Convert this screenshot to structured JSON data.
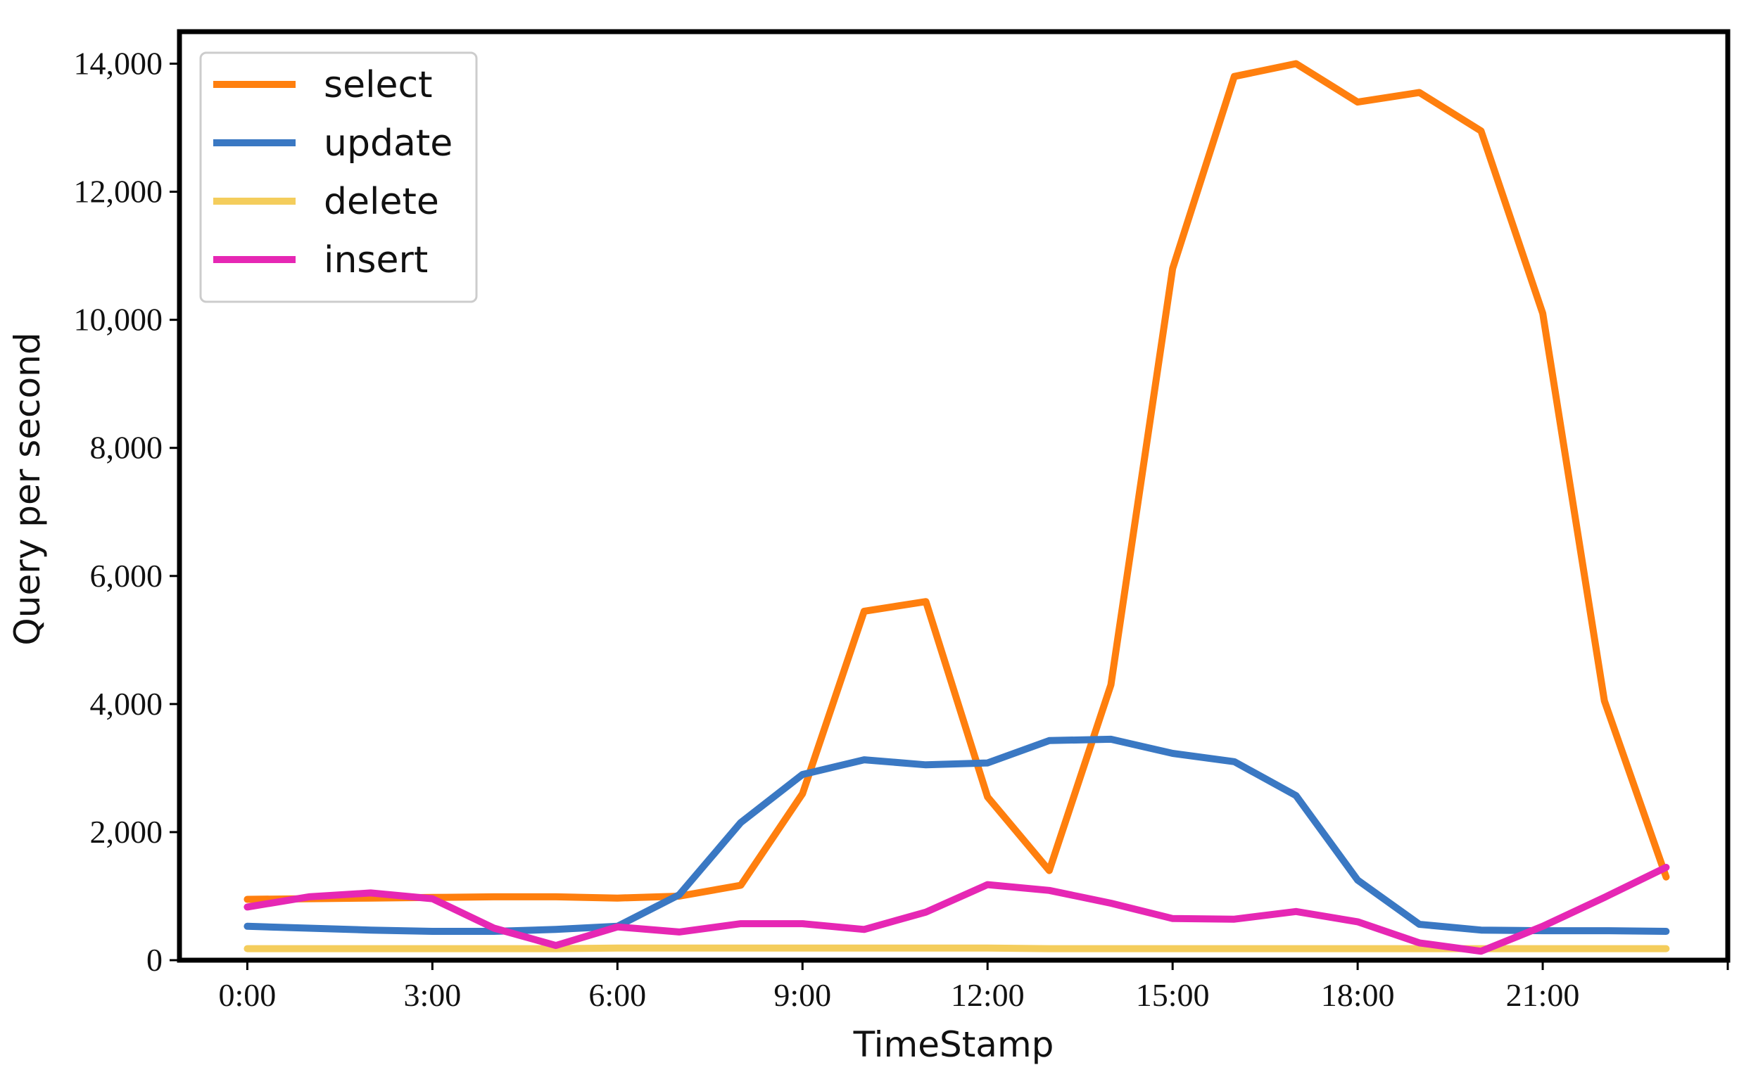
{
  "chart_data": {
    "type": "line",
    "xlabel": "TimeStamp",
    "ylabel": "Query per second",
    "x": [
      0,
      1,
      2,
      3,
      4,
      5,
      6,
      7,
      8,
      9,
      10,
      11,
      12,
      13,
      14,
      15,
      16,
      17,
      18,
      19,
      20,
      21,
      22,
      23
    ],
    "xticks": [
      {
        "value": 0,
        "label": "0:00"
      },
      {
        "value": 3,
        "label": "3:00"
      },
      {
        "value": 6,
        "label": "6:00"
      },
      {
        "value": 9,
        "label": "9:00"
      },
      {
        "value": 12,
        "label": "12:00"
      },
      {
        "value": 15,
        "label": "15:00"
      },
      {
        "value": 18,
        "label": "18:00"
      },
      {
        "value": 21,
        "label": "21:00"
      }
    ],
    "yticks": [
      {
        "value": 0,
        "label": "0"
      },
      {
        "value": 2000,
        "label": "2,000"
      },
      {
        "value": 4000,
        "label": "4,000"
      },
      {
        "value": 6000,
        "label": "6,000"
      },
      {
        "value": 8000,
        "label": "8,000"
      },
      {
        "value": 10000,
        "label": "10,000"
      },
      {
        "value": 12000,
        "label": "12,000"
      },
      {
        "value": 14000,
        "label": "14,000"
      }
    ],
    "xlim": [
      -1.1,
      24.0
    ],
    "ylim": [
      0,
      14500
    ],
    "grid": false,
    "legend": "top-left",
    "series": [
      {
        "name": "select",
        "color": "#ff7f0e",
        "values": [
          950,
          960,
          970,
          980,
          990,
          990,
          970,
          1000,
          1170,
          2600,
          5450,
          5600,
          2550,
          1400,
          4300,
          10800,
          13800,
          14000,
          13400,
          13550,
          12950,
          10100,
          4050,
          1300
        ]
      },
      {
        "name": "update",
        "color": "#3a78c3",
        "values": [
          530,
          500,
          470,
          450,
          450,
          480,
          530,
          1020,
          2150,
          2900,
          3130,
          3050,
          3080,
          3430,
          3450,
          3230,
          3100,
          2570,
          1250,
          560,
          470,
          460,
          460,
          450
        ]
      },
      {
        "name": "delete",
        "color": "#f4cd5c",
        "values": [
          180,
          180,
          180,
          180,
          180,
          180,
          190,
          190,
          190,
          190,
          190,
          190,
          190,
          180,
          180,
          180,
          180,
          180,
          180,
          180,
          180,
          180,
          180,
          180
        ]
      },
      {
        "name": "insert",
        "color": "#e627b4",
        "values": [
          830,
          990,
          1050,
          960,
          500,
          230,
          520,
          440,
          570,
          570,
          480,
          750,
          1180,
          1090,
          890,
          650,
          640,
          760,
          600,
          270,
          140,
          530,
          980,
          1450
        ]
      }
    ]
  }
}
